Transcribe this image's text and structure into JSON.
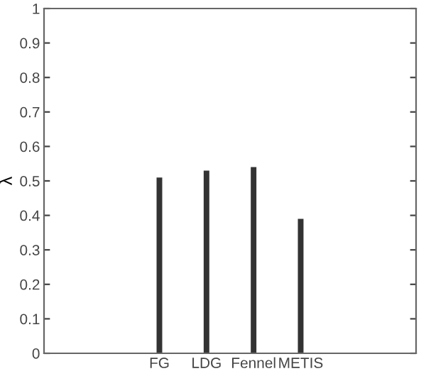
{
  "chart_data": {
    "type": "bar",
    "ylabel": "λ",
    "categories": [
      "FG",
      "LDG",
      "Fennel",
      "METIS"
    ],
    "values": [
      0.51,
      0.53,
      0.54,
      0.39
    ],
    "color": "#333333",
    "ylim": [
      0,
      1
    ],
    "yticks": [
      0,
      0.1,
      0.2,
      0.3,
      0.4,
      0.5,
      0.6,
      0.7,
      0.8,
      0.9,
      1
    ],
    "grid": false,
    "legend": false
  }
}
